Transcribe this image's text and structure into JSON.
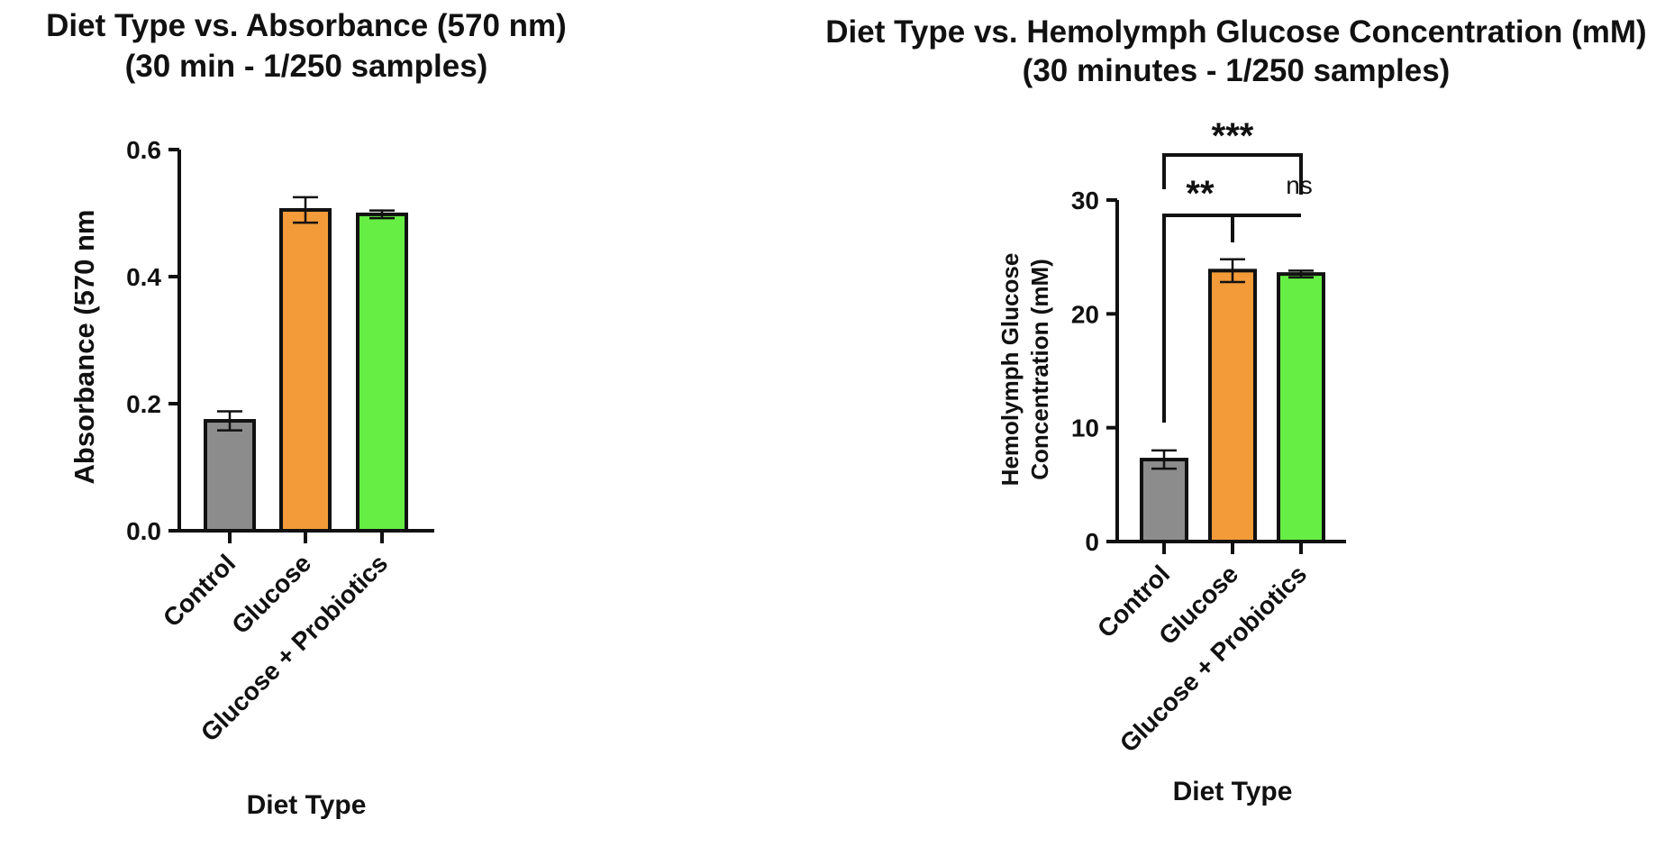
{
  "chart_data": [
    {
      "type": "bar",
      "title": "Diet Type vs. Absorbance (570 nm)",
      "subtitle": "(30 min - 1/250 samples)",
      "xlabel": "Diet Type",
      "ylabel": "Absorbance (570 nm",
      "categories": [
        "Control",
        "Glucose",
        "Glucose + Probiotics"
      ],
      "values": [
        0.173,
        0.505,
        0.498
      ],
      "error_bars": [
        0.015,
        0.02,
        0.006
      ],
      "colors": [
        "#8c8c8c",
        "#f29b38",
        "#66ee44"
      ],
      "ylim": [
        0,
        0.6
      ],
      "yticks": [
        "0.0",
        "0.2",
        "0.4",
        "0.6"
      ],
      "grid": false
    },
    {
      "type": "bar",
      "title": "Diet Type vs. Hemolymph Glucose Concentration (mM)",
      "subtitle": "(30 minutes - 1/250 samples)",
      "xlabel": "Diet Type",
      "ylabel_lines": [
        "Hemolymph Glucose",
        "Concentration (mM)"
      ],
      "categories": [
        "Control",
        "Glucose",
        "Glucose + Probiotics"
      ],
      "values": [
        7.2,
        23.8,
        23.5
      ],
      "error_bars": [
        0.8,
        1.0,
        0.3
      ],
      "colors": [
        "#8c8c8c",
        "#f29b38",
        "#66ee44"
      ],
      "ylim": [
        0,
        30
      ],
      "yticks": [
        "0",
        "10",
        "20",
        "30"
      ],
      "grid": false,
      "significance": [
        {
          "from": "Control",
          "to": "Glucose + Probiotics",
          "label": "***"
        },
        {
          "from": "Control",
          "to": "Glucose",
          "label": "**"
        },
        {
          "from": "Glucose",
          "to": "Glucose + Probiotics",
          "label": "ns"
        }
      ]
    }
  ]
}
